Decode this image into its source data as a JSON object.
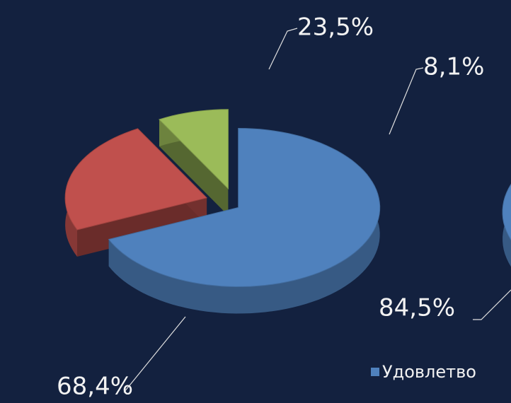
{
  "chart_data": [
    {
      "type": "pie",
      "values": [
        68.4,
        23.5,
        8.1
      ],
      "value_labels": [
        "68,4%",
        "23,5%",
        "8,1%"
      ],
      "colors": [
        "#4f81bd",
        "#c0504d",
        "#9bbb59"
      ]
    },
    {
      "type": "pie",
      "values": [
        84.5
      ],
      "value_labels": [
        "84,5%"
      ],
      "categories": [
        "Удовлетво"
      ],
      "colors": [
        "#4f81bd"
      ]
    }
  ]
}
